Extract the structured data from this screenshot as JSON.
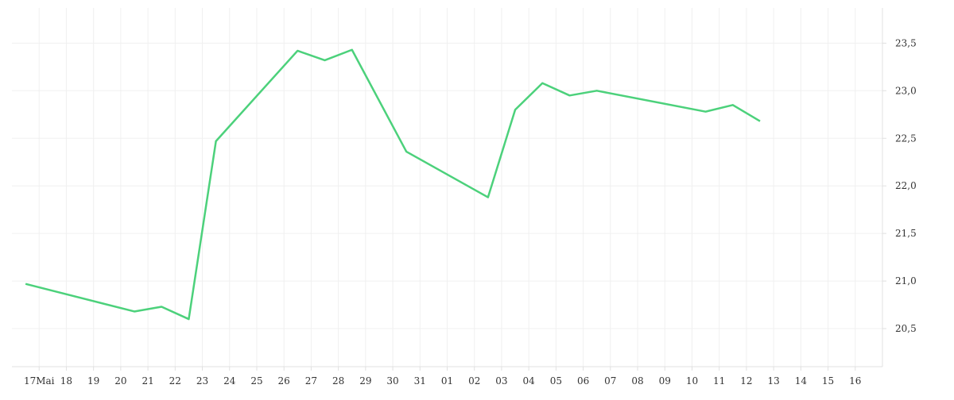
{
  "chart_data": {
    "type": "line",
    "x": [
      -0.5,
      3.5,
      4.5,
      5.5,
      6.5,
      9.5,
      10.5,
      11.5,
      13.5,
      16.5,
      17.5,
      18.5,
      19.5,
      20.5,
      24.5,
      25.5,
      26.5
    ],
    "series": [
      {
        "color": "#4cd17b",
        "values": [
          20.97,
          20.68,
          20.73,
          20.6,
          22.47,
          23.42,
          23.32,
          23.43,
          22.36,
          21.88,
          22.8,
          23.08,
          22.95,
          23.0,
          22.78,
          22.85,
          22.68
        ]
      }
    ],
    "xlim": [
      -1,
      31
    ],
    "xticks": [
      {
        "value": 0,
        "label": "17Mai"
      },
      {
        "value": 1,
        "label": "18"
      },
      {
        "value": 2,
        "label": "19"
      },
      {
        "value": 3,
        "label": "20"
      },
      {
        "value": 4,
        "label": "21"
      },
      {
        "value": 5,
        "label": "22"
      },
      {
        "value": 6,
        "label": "23"
      },
      {
        "value": 7,
        "label": "24"
      },
      {
        "value": 8,
        "label": "25"
      },
      {
        "value": 9,
        "label": "26"
      },
      {
        "value": 10,
        "label": "27"
      },
      {
        "value": 11,
        "label": "28"
      },
      {
        "value": 12,
        "label": "29"
      },
      {
        "value": 13,
        "label": "30"
      },
      {
        "value": 14,
        "label": "31"
      },
      {
        "value": 15,
        "label": "01"
      },
      {
        "value": 16,
        "label": "02"
      },
      {
        "value": 17,
        "label": "03"
      },
      {
        "value": 18,
        "label": "04"
      },
      {
        "value": 19,
        "label": "05"
      },
      {
        "value": 20,
        "label": "06"
      },
      {
        "value": 21,
        "label": "07"
      },
      {
        "value": 22,
        "label": "08"
      },
      {
        "value": 23,
        "label": "09"
      },
      {
        "value": 24,
        "label": "10"
      },
      {
        "value": 25,
        "label": "11"
      },
      {
        "value": 26,
        "label": "12"
      },
      {
        "value": 27,
        "label": "13"
      },
      {
        "value": 28,
        "label": "14"
      },
      {
        "value": 29,
        "label": "15"
      },
      {
        "value": 30,
        "label": "16"
      }
    ],
    "ylim": [
      20.1,
      23.87
    ],
    "yticks": [
      {
        "value": 20.5,
        "label": "20,5"
      },
      {
        "value": 21.0,
        "label": "21,0"
      },
      {
        "value": 21.5,
        "label": "21,5"
      },
      {
        "value": 22.0,
        "label": "22,0"
      },
      {
        "value": 22.5,
        "label": "22,5"
      },
      {
        "value": 23.0,
        "label": "23,0"
      },
      {
        "value": 23.5,
        "label": "23,5"
      }
    ],
    "grid": true
  }
}
